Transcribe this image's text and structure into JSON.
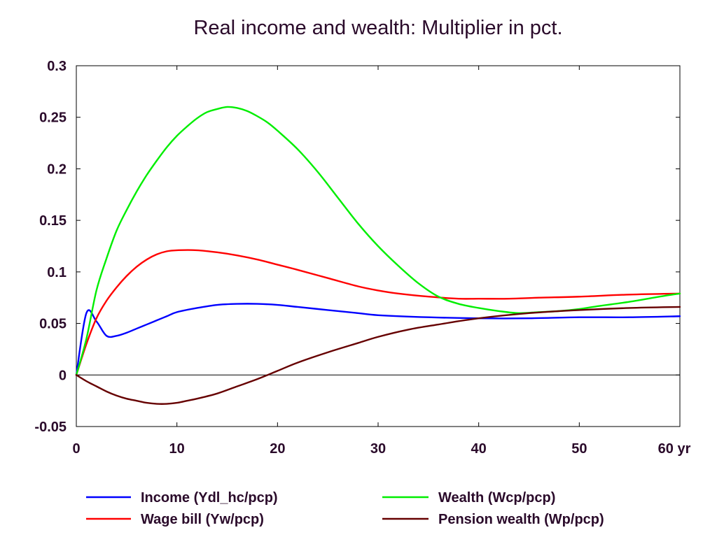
{
  "chart_data": {
    "type": "line",
    "title": "Real income and wealth: Multiplier in pct.",
    "x_unit_label": "yr",
    "xlim": [
      0,
      60
    ],
    "ylim": [
      -0.05,
      0.3
    ],
    "x_ticks": [
      0,
      10,
      20,
      30,
      40,
      50,
      60
    ],
    "x_tick_labels": [
      "0",
      "10",
      "20",
      "30",
      "40",
      "50",
      "60 yr"
    ],
    "y_ticks": [
      -0.05,
      0,
      0.05,
      0.1,
      0.15,
      0.2,
      0.25,
      0.3
    ],
    "y_tick_labels": [
      "-0.05",
      "0",
      "0.05",
      "0.1",
      "0.15",
      "0.2",
      "0.25",
      "0.3"
    ],
    "zero_line": true,
    "grid": false,
    "legend_position": "bottom",
    "series": [
      {
        "name": "Income (Ydl_hc/pcp)",
        "color": "#0000ff",
        "x": [
          0,
          1,
          2,
          3,
          4,
          5,
          6,
          7,
          8,
          9,
          10,
          12,
          14,
          16,
          18,
          20,
          22,
          25,
          28,
          30,
          35,
          40,
          45,
          50,
          55,
          60
        ],
        "y": [
          0,
          0.06,
          0.052,
          0.038,
          0.038,
          0.041,
          0.045,
          0.049,
          0.053,
          0.057,
          0.061,
          0.065,
          0.068,
          0.069,
          0.069,
          0.068,
          0.066,
          0.063,
          0.06,
          0.058,
          0.056,
          0.055,
          0.055,
          0.056,
          0.056,
          0.057
        ]
      },
      {
        "name": "Wage bill (Yw/pcp)",
        "color": "#ff0000",
        "x": [
          0,
          1,
          2,
          3,
          4,
          5,
          6,
          7,
          8,
          9,
          10,
          12,
          14,
          16,
          18,
          20,
          22,
          25,
          28,
          30,
          32,
          35,
          38,
          40,
          43,
          46,
          50,
          55,
          60
        ],
        "y": [
          0,
          0.03,
          0.055,
          0.072,
          0.085,
          0.096,
          0.105,
          0.112,
          0.117,
          0.12,
          0.121,
          0.121,
          0.119,
          0.116,
          0.112,
          0.107,
          0.102,
          0.094,
          0.086,
          0.082,
          0.079,
          0.076,
          0.074,
          0.074,
          0.074,
          0.075,
          0.076,
          0.078,
          0.079
        ]
      },
      {
        "name": "Wealth (Wcp/pcp)",
        "color": "#00ee00",
        "x": [
          0,
          1,
          2,
          3,
          4,
          5,
          6,
          7,
          8,
          9,
          10,
          11,
          12,
          13,
          14,
          15,
          16,
          17,
          18,
          19,
          20,
          22,
          24,
          26,
          28,
          30,
          32,
          34,
          36,
          38,
          40,
          42,
          44,
          46,
          48,
          50,
          52,
          55,
          58,
          60
        ],
        "y": [
          0,
          0.035,
          0.082,
          0.113,
          0.14,
          0.16,
          0.178,
          0.194,
          0.208,
          0.221,
          0.232,
          0.241,
          0.249,
          0.255,
          0.258,
          0.26,
          0.259,
          0.256,
          0.251,
          0.245,
          0.237,
          0.219,
          0.197,
          0.172,
          0.147,
          0.125,
          0.106,
          0.089,
          0.076,
          0.069,
          0.065,
          0.062,
          0.06,
          0.061,
          0.062,
          0.064,
          0.067,
          0.071,
          0.076,
          0.079
        ]
      },
      {
        "name": "Pension wealth (Wp/pcp)",
        "color": "#660000",
        "x": [
          0,
          1,
          2,
          3,
          4,
          5,
          6,
          7,
          8,
          9,
          10,
          11,
          12,
          14,
          16,
          18,
          20,
          22,
          25,
          28,
          30,
          33,
          36,
          40,
          45,
          50,
          55,
          60
        ],
        "y": [
          0,
          -0.006,
          -0.011,
          -0.016,
          -0.02,
          -0.023,
          -0.025,
          -0.027,
          -0.028,
          -0.028,
          -0.027,
          -0.025,
          -0.023,
          -0.018,
          -0.011,
          -0.004,
          0.004,
          0.012,
          0.022,
          0.031,
          0.037,
          0.044,
          0.049,
          0.055,
          0.06,
          0.063,
          0.065,
          0.066
        ]
      }
    ]
  }
}
